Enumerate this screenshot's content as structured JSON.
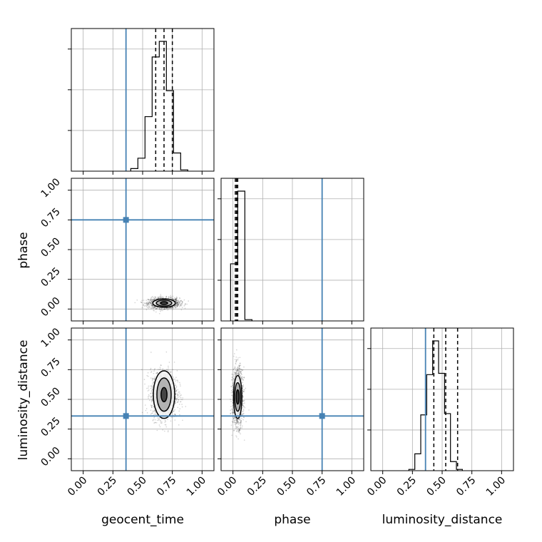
{
  "chart_data": {
    "type": "corner",
    "parameters": [
      "geocent_time",
      "phase",
      "luminosity_distance"
    ],
    "tick_values": [
      0,
      0.25,
      0.5,
      0.75,
      1.0
    ],
    "tick_labels": [
      "0.00",
      "0.25",
      "0.50",
      "0.75",
      "1.00"
    ],
    "axis_range": [
      -0.1,
      1.1
    ],
    "grid": true,
    "truths": {
      "geocent_time": 0.36,
      "phase": 0.75,
      "luminosity_distance": 0.36
    },
    "colors": {
      "truth": "#4682b4",
      "hist": "#000000",
      "grid": "#b0b0b0",
      "contour_fill": "#808080"
    },
    "histograms": [
      {
        "parameter": "geocent_time",
        "bin_start": 0.4,
        "bin_width": 0.06,
        "counts": [
          0.02,
          0.1,
          0.42,
          0.88,
          1.0,
          0.62,
          0.14,
          0.01
        ],
        "quantiles": [
          0.61,
          0.68,
          0.75
        ]
      },
      {
        "parameter": "phase",
        "bin_start": -0.02,
        "bin_width": 0.06,
        "counts": [
          0.44,
          1.0,
          0.01
        ],
        "quantiles": [
          0.02,
          0.03,
          0.04
        ]
      },
      {
        "parameter": "luminosity_distance",
        "bin_start": 0.22,
        "bin_width": 0.05,
        "counts": [
          0.01,
          0.13,
          0.43,
          0.74,
          1.0,
          0.75,
          0.44,
          0.07,
          0.01
        ],
        "quantiles": [
          0.43,
          0.53,
          0.63
        ]
      }
    ],
    "panels_2d": [
      {
        "x": "geocent_time",
        "y": "phase",
        "center": [
          0.68,
          0.05
        ],
        "spread": [
          0.065,
          0.022
        ],
        "contour_levels": [
          [
            0.03,
            0.012
          ],
          [
            0.065,
            0.025
          ],
          [
            0.095,
            0.035
          ]
        ]
      },
      {
        "x": "geocent_time",
        "y": "luminosity_distance",
        "center": [
          0.68,
          0.54
        ],
        "spread": [
          0.055,
          0.1
        ],
        "contour_levels": [
          [
            0.025,
            0.06
          ],
          [
            0.06,
            0.14
          ],
          [
            0.09,
            0.2
          ]
        ]
      },
      {
        "x": "phase",
        "y": "luminosity_distance",
        "center": [
          0.04,
          0.52
        ],
        "spread": [
          0.022,
          0.12
        ],
        "contour_levels": [
          [
            0.012,
            0.06
          ],
          [
            0.025,
            0.12
          ],
          [
            0.035,
            0.18
          ]
        ]
      }
    ]
  }
}
